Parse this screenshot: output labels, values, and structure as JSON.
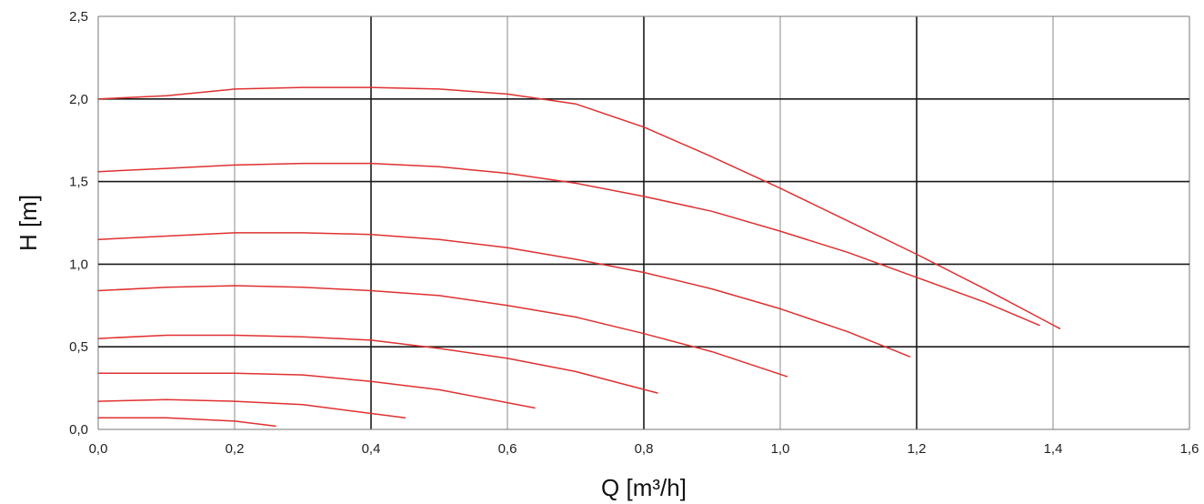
{
  "chart_data": {
    "type": "line",
    "title": "",
    "xlabel": "Q [m³/h]",
    "ylabel": "H [m]",
    "xlim": [
      0,
      1.6
    ],
    "ylim": [
      0,
      2.5
    ],
    "grid": true,
    "x_ticks": [
      0,
      0.2,
      0.4,
      0.6,
      0.8,
      1.0,
      1.2,
      1.4,
      1.6
    ],
    "x_tick_labels": [
      "0,0",
      "0,2",
      "0,4",
      "0,6",
      "0,8",
      "1,0",
      "1,2",
      "1,4",
      "1,6"
    ],
    "y_ticks": [
      0,
      0.5,
      1.0,
      1.5,
      2.0,
      2.5
    ],
    "y_tick_labels": [
      "0,0",
      "0,5",
      "1,0",
      "1,5",
      "2,0",
      "2,5"
    ],
    "line_color": "#e03030",
    "series": [
      {
        "x": [
          0,
          0.1,
          0.2,
          0.3,
          0.4,
          0.5,
          0.6,
          0.7,
          0.8,
          0.9,
          1.0,
          1.1,
          1.2,
          1.3,
          1.41
        ],
        "y": [
          2.0,
          2.02,
          2.06,
          2.07,
          2.07,
          2.06,
          2.03,
          1.97,
          1.83,
          1.65,
          1.46,
          1.26,
          1.06,
          0.85,
          0.61
        ]
      },
      {
        "x": [
          0,
          0.1,
          0.2,
          0.3,
          0.4,
          0.5,
          0.6,
          0.7,
          0.8,
          0.9,
          1.0,
          1.1,
          1.2,
          1.3,
          1.38
        ],
        "y": [
          1.56,
          1.58,
          1.6,
          1.61,
          1.61,
          1.59,
          1.55,
          1.49,
          1.41,
          1.32,
          1.2,
          1.07,
          0.92,
          0.77,
          0.63
        ]
      },
      {
        "x": [
          0,
          0.1,
          0.2,
          0.3,
          0.4,
          0.5,
          0.6,
          0.7,
          0.8,
          0.9,
          1.0,
          1.1,
          1.19
        ],
        "y": [
          1.15,
          1.17,
          1.19,
          1.19,
          1.18,
          1.15,
          1.1,
          1.03,
          0.95,
          0.85,
          0.73,
          0.59,
          0.44
        ]
      },
      {
        "x": [
          0,
          0.1,
          0.2,
          0.3,
          0.4,
          0.5,
          0.6,
          0.7,
          0.8,
          0.9,
          1.01
        ],
        "y": [
          0.84,
          0.86,
          0.87,
          0.86,
          0.84,
          0.81,
          0.75,
          0.68,
          0.58,
          0.47,
          0.32
        ]
      },
      {
        "x": [
          0,
          0.1,
          0.2,
          0.3,
          0.4,
          0.5,
          0.6,
          0.7,
          0.82
        ],
        "y": [
          0.55,
          0.57,
          0.57,
          0.56,
          0.54,
          0.49,
          0.43,
          0.35,
          0.22
        ]
      },
      {
        "x": [
          0,
          0.1,
          0.2,
          0.3,
          0.4,
          0.5,
          0.64
        ],
        "y": [
          0.34,
          0.34,
          0.34,
          0.33,
          0.29,
          0.24,
          0.13
        ]
      },
      {
        "x": [
          0,
          0.1,
          0.2,
          0.3,
          0.45
        ],
        "y": [
          0.17,
          0.18,
          0.17,
          0.15,
          0.07
        ]
      },
      {
        "x": [
          0,
          0.1,
          0.2,
          0.26
        ],
        "y": [
          0.07,
          0.07,
          0.05,
          0.02
        ]
      }
    ]
  }
}
